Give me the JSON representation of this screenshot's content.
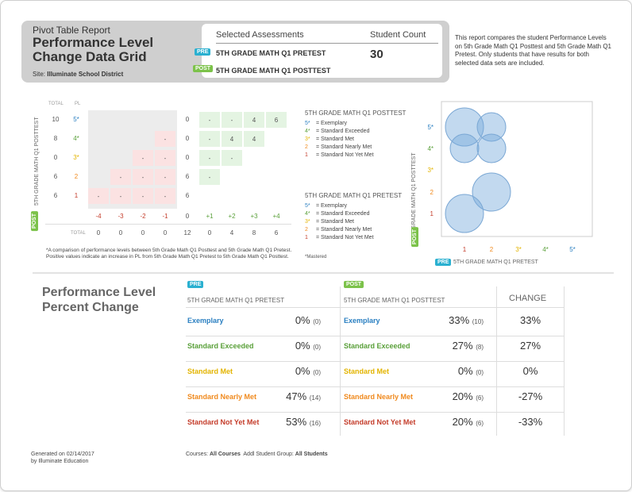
{
  "header": {
    "small_title": "Pivot Table Report",
    "title": "Performance Level Change Data Grid",
    "site_label": "Site:",
    "site_value": "Illuminate School District",
    "selected_label": "Selected Assessments",
    "count_label": "Student Count",
    "pre_badge": "PRE",
    "post_badge": "POST",
    "pre_assessment": "5TH GRADE MATH Q1 PRETEST",
    "post_assessment": "5TH GRADE MATH Q1 POSTTEST",
    "student_count": "30"
  },
  "intro_text": "This report compares the student Performance Levels on 5th Grade Math Q1 Posttest and 5th Grade Math Q1 Pretest. Only students that have results for both selected data sets are included.",
  "grid": {
    "total_label": "TOTAL",
    "pl_label": "PL",
    "post_axis_label": "5TH GRADE MATH Q1 POSTTEST",
    "post_badge": "POST",
    "rows": [
      {
        "total": "10",
        "pl": "5*",
        "left": [
          "",
          "",
          "",
          ""
        ],
        "mid": "0",
        "right": [
          "-",
          "-",
          "4",
          "6"
        ]
      },
      {
        "total": "8",
        "pl": "4*",
        "left": [
          "",
          "",
          "",
          "-"
        ],
        "mid": "0",
        "right": [
          "-",
          "4",
          "4",
          ""
        ]
      },
      {
        "total": "0",
        "pl": "3*",
        "left": [
          "",
          "",
          "-",
          "-"
        ],
        "mid": "0",
        "right": [
          "-",
          "-",
          "",
          ""
        ]
      },
      {
        "total": "6",
        "pl": "2",
        "left": [
          "",
          "-",
          "-",
          "-"
        ],
        "mid": "6",
        "right": [
          "-",
          "",
          "",
          ""
        ]
      },
      {
        "total": "6",
        "pl": "1",
        "left": [
          "-",
          "-",
          "-",
          "-"
        ],
        "mid": "6",
        "right": [
          "",
          "",
          "",
          ""
        ]
      }
    ],
    "change_labels": [
      "-4",
      "-3",
      "-2",
      "-1",
      "0",
      "+1",
      "+2",
      "+3",
      "+4"
    ],
    "bottom_total_label": "TOTAL",
    "bottom_totals": [
      "0",
      "0",
      "0",
      "0",
      "12",
      "0",
      "4",
      "8",
      "6"
    ],
    "footnote": "*A comparison of performance levels between 5th Grade Math Q1 Posttest and 5th Grade Math Q1 Pretest. Positive values indicate an increase in PL from 5th Grade Math Q1 Pretest to 5th Grade Math Q1 Posttest."
  },
  "legend_post": {
    "title": "5TH GRADE MATH Q1 POSTTEST",
    "items": [
      {
        "code": "5*",
        "label": "= Exemplary",
        "color": "#2a7fc1"
      },
      {
        "code": "4*",
        "label": "= Standard Exceeded",
        "color": "#5aa03a"
      },
      {
        "code": "3*",
        "label": "= Standard Met",
        "color": "#e3b400"
      },
      {
        "code": "2",
        "label": "= Standard Nearly Met",
        "color": "#f08a1e"
      },
      {
        "code": "1",
        "label": "= Standard Not Yet Met",
        "color": "#c43c2a"
      }
    ]
  },
  "legend_pre": {
    "title": "5TH GRADE MATH Q1 PRETEST",
    "items": [
      {
        "code": "5*",
        "label": "= Exemplary",
        "color": "#2a7fc1"
      },
      {
        "code": "4*",
        "label": "= Standard Exceeded",
        "color": "#5aa03a"
      },
      {
        "code": "3*",
        "label": "= Standard Met",
        "color": "#e3b400"
      },
      {
        "code": "2",
        "label": "= Standard Nearly Met",
        "color": "#f08a1e"
      },
      {
        "code": "1",
        "label": "= Standard Not Yet Met",
        "color": "#c43c2a"
      }
    ],
    "mastered_note": "*Mastered"
  },
  "bubble": {
    "y_axis_label": "5TH GRADE MATH Q1 POSTTEST",
    "x_axis_label": "5TH GRADE MATH Q1 PRETEST",
    "y_badge": "POST",
    "x_badge": "PRE",
    "ticks": [
      {
        "label": "1",
        "color": "#c43c2a"
      },
      {
        "label": "2",
        "color": "#f08a1e"
      },
      {
        "label": "3*",
        "color": "#e3b400"
      },
      {
        "label": "4*",
        "color": "#5aa03a"
      },
      {
        "label": "5*",
        "color": "#2a7fc1"
      }
    ]
  },
  "chart_data": {
    "type": "scatter",
    "x_categories": [
      "1",
      "2",
      "3*",
      "4*",
      "5*"
    ],
    "y_categories": [
      "1",
      "2",
      "3*",
      "4*",
      "5*"
    ],
    "xlabel": "5TH GRADE MATH Q1 PRETEST",
    "ylabel": "5TH GRADE MATH Q1 POSTTEST",
    "points": [
      {
        "x": "1",
        "y": "5*",
        "size": 6
      },
      {
        "x": "2",
        "y": "5*",
        "size": 4
      },
      {
        "x": "1",
        "y": "4*",
        "size": 4
      },
      {
        "x": "2",
        "y": "4*",
        "size": 4
      },
      {
        "x": "2",
        "y": "2",
        "size": 6
      },
      {
        "x": "1",
        "y": "1",
        "size": 6
      }
    ]
  },
  "percent_change": {
    "title": "Performance Level Percent Change",
    "pre_badge": "PRE",
    "post_badge": "POST",
    "pre_header": "5TH GRADE MATH Q1 PRETEST",
    "post_header": "5TH GRADE MATH Q1 POSTTEST",
    "change_header": "CHANGE",
    "rows": [
      {
        "level": "Exemplary",
        "color": "#2a7fc1",
        "pre_pct": "0%",
        "pre_n": "(0)",
        "post_pct": "33%",
        "post_n": "(10)",
        "change": "33%"
      },
      {
        "level": "Standard Exceeded",
        "color": "#5aa03a",
        "pre_pct": "0%",
        "pre_n": "(0)",
        "post_pct": "27%",
        "post_n": "(8)",
        "change": "27%"
      },
      {
        "level": "Standard Met",
        "color": "#e3b400",
        "pre_pct": "0%",
        "pre_n": "(0)",
        "post_pct": "0%",
        "post_n": "(0)",
        "change": "0%"
      },
      {
        "level": "Standard Nearly Met",
        "color": "#f08a1e",
        "pre_pct": "47%",
        "pre_n": "(14)",
        "post_pct": "20%",
        "post_n": "(6)",
        "change": "-27%"
      },
      {
        "level": "Standard Not Yet Met",
        "color": "#c43c2a",
        "pre_pct": "53%",
        "pre_n": "(16)",
        "post_pct": "20%",
        "post_n": "(6)",
        "change": "-33%"
      }
    ]
  },
  "footer": {
    "generated": "Generated on 02/14/2017",
    "by": "by Illuminate Education",
    "courses_label": "Courses:",
    "courses_value": "All Courses",
    "group_label": "Addl Student Group:",
    "group_value": "All Students"
  }
}
